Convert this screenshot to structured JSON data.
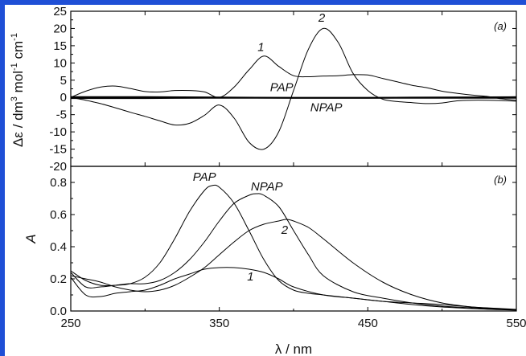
{
  "page": {
    "accent_color": "#1f4fd6"
  },
  "chart_data": [
    {
      "panel": "(a)",
      "type": "line",
      "ylabel_text": "Δε / dm³ mol⁻¹ cm⁻¹",
      "ylabel_base": "Δε / dm",
      "ylabel_sup1": "3",
      "ylabel_mid": " mol",
      "ylabel_sup2": "-1",
      "ylabel_mid2": " cm",
      "ylabel_sup3": "-1",
      "xlim": [
        250,
        550
      ],
      "ylim": [
        -20,
        25
      ],
      "yticks": [
        "-20",
        "-15",
        "-10",
        "-5",
        "0",
        "5",
        "10",
        "15",
        "20",
        "25"
      ],
      "series": [
        {
          "name": "1",
          "x": [
            250,
            260,
            270,
            280,
            290,
            300,
            310,
            320,
            330,
            340,
            350,
            360,
            370,
            380,
            390,
            400,
            410,
            420,
            430,
            440,
            450,
            460,
            470,
            480,
            490,
            500,
            510,
            520,
            530,
            540,
            550
          ],
          "values": [
            0,
            1.8,
            3,
            3.3,
            2.6,
            1.7,
            1.6,
            2,
            2,
            1.6,
            0,
            3,
            8,
            12,
            9,
            6.3,
            6,
            6.2,
            6.3,
            6.6,
            6.5,
            5.5,
            4.5,
            3.5,
            2.8,
            1.8,
            1.2,
            0.7,
            0.3,
            -0.4,
            -0.8
          ]
        },
        {
          "name": "2",
          "x": [
            250,
            260,
            270,
            280,
            290,
            300,
            310,
            320,
            330,
            340,
            350,
            360,
            370,
            380,
            390,
            400,
            410,
            420,
            430,
            440,
            450,
            460,
            470,
            480,
            490,
            500,
            510,
            520,
            530,
            540,
            550
          ],
          "values": [
            0,
            -0.8,
            -1.8,
            -3,
            -4.3,
            -5.5,
            -6.8,
            -8,
            -7.5,
            -5.2,
            -2.2,
            -6,
            -13,
            -15,
            -10,
            2,
            14,
            20,
            16,
            7,
            2,
            -0.5,
            -1.2,
            -1.5,
            -1.8,
            -1.6,
            -1,
            -0.8,
            -0.8,
            -0.9,
            -1.1
          ]
        },
        {
          "name": "PAP",
          "x": [
            250,
            300,
            350,
            400,
            450,
            500,
            550
          ],
          "values": [
            -0.2,
            -0.2,
            -0.1,
            -0.1,
            -0.1,
            -0.1,
            -0.1
          ]
        },
        {
          "name": "NPAP",
          "x": [
            250,
            300,
            350,
            400,
            450,
            500,
            550
          ],
          "values": [
            0.1,
            0.1,
            0,
            -0.1,
            -0.1,
            0,
            0.1
          ]
        }
      ]
    },
    {
      "panel": "(b)",
      "type": "line",
      "ylabel": "A",
      "xlabel": "λ / nm",
      "xlim": [
        250,
        550
      ],
      "ylim": [
        0,
        0.9
      ],
      "xticks": [
        "250",
        "350",
        "450",
        "550"
      ],
      "yticks": [
        "0.0",
        "0.2",
        "0.4",
        "0.6",
        "0.8"
      ],
      "series": [
        {
          "name": "PAP",
          "x": [
            250,
            260,
            270,
            280,
            290,
            300,
            310,
            320,
            330,
            340,
            345,
            350,
            360,
            370,
            380,
            390,
            400,
            410,
            420,
            440,
            460,
            480,
            500,
            520,
            540,
            550
          ],
          "values": [
            0.25,
            0.19,
            0.16,
            0.16,
            0.17,
            0.21,
            0.3,
            0.45,
            0.62,
            0.75,
            0.78,
            0.77,
            0.67,
            0.5,
            0.32,
            0.19,
            0.13,
            0.11,
            0.1,
            0.08,
            0.06,
            0.05,
            0.04,
            0.025,
            0.015,
            0.01
          ]
        },
        {
          "name": "NPAP",
          "x": [
            250,
            260,
            270,
            280,
            290,
            300,
            310,
            320,
            330,
            340,
            350,
            360,
            370,
            375,
            380,
            390,
            400,
            410,
            420,
            440,
            460,
            480,
            500,
            520,
            540,
            550
          ],
          "values": [
            0.24,
            0.15,
            0.15,
            0.16,
            0.17,
            0.17,
            0.19,
            0.24,
            0.32,
            0.43,
            0.56,
            0.67,
            0.72,
            0.73,
            0.72,
            0.65,
            0.5,
            0.35,
            0.22,
            0.12,
            0.08,
            0.05,
            0.03,
            0.02,
            0.01,
            0.008
          ]
        },
        {
          "name": "2",
          "x": [
            250,
            260,
            270,
            280,
            290,
            300,
            310,
            320,
            330,
            340,
            350,
            360,
            370,
            380,
            390,
            395,
            400,
            410,
            420,
            440,
            460,
            480,
            500,
            520,
            540,
            550
          ],
          "values": [
            0.22,
            0.2,
            0.18,
            0.15,
            0.13,
            0.12,
            0.13,
            0.16,
            0.21,
            0.27,
            0.35,
            0.43,
            0.5,
            0.54,
            0.56,
            0.57,
            0.56,
            0.52,
            0.45,
            0.3,
            0.18,
            0.1,
            0.05,
            0.025,
            0.012,
            0.008
          ]
        },
        {
          "name": "1",
          "x": [
            250,
            260,
            270,
            280,
            290,
            300,
            310,
            320,
            330,
            340,
            350,
            360,
            370,
            380,
            390,
            400,
            420,
            440,
            460,
            480,
            500,
            520,
            540,
            550
          ],
          "values": [
            0.21,
            0.1,
            0.09,
            0.11,
            0.12,
            0.13,
            0.16,
            0.2,
            0.23,
            0.26,
            0.27,
            0.27,
            0.26,
            0.24,
            0.2,
            0.15,
            0.1,
            0.08,
            0.06,
            0.04,
            0.025,
            0.015,
            0.008,
            0.005
          ]
        }
      ],
      "labels": [
        {
          "text": "PAP",
          "x": 340,
          "y": 0.81
        },
        {
          "text": "NPAP",
          "x": 382,
          "y": 0.75
        },
        {
          "text": "2",
          "x": 394,
          "y": 0.48
        },
        {
          "text": "1",
          "x": 371,
          "y": 0.19
        }
      ]
    }
  ],
  "labels_a": [
    {
      "text": "1",
      "x": 378,
      "y": 13.5
    },
    {
      "text": "2",
      "x": 419,
      "y": 22
    },
    {
      "text": "PAP",
      "x": 392,
      "y": 1.8
    },
    {
      "text": "NPAP",
      "x": 422,
      "y": -4
    }
  ]
}
